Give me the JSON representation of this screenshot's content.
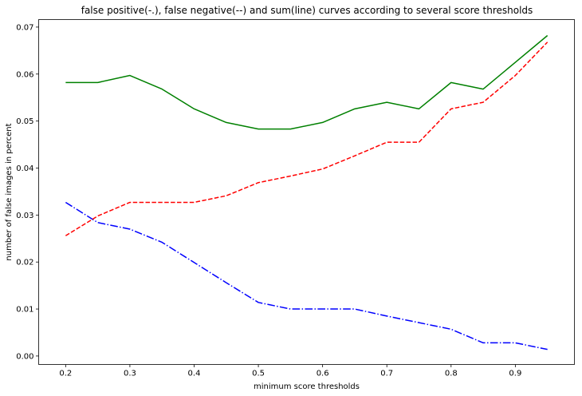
{
  "chart_data": {
    "type": "line",
    "title": "false positive(-.), false negative(--) and sum(line) curves according to several score thresholds",
    "xlabel": "minimum score thresholds",
    "ylabel": "number of false images in percent",
    "x": [
      0.2,
      0.25,
      0.3,
      0.35,
      0.4,
      0.45,
      0.5,
      0.55,
      0.6,
      0.65,
      0.7,
      0.75,
      0.8,
      0.85,
      0.9,
      0.95
    ],
    "xlim": [
      0.158,
      0.992
    ],
    "ylim": [
      -0.0018,
      0.0716
    ],
    "xticks": [
      0.2,
      0.3,
      0.4,
      0.5,
      0.6,
      0.7,
      0.8,
      0.9
    ],
    "xtick_labels": [
      "0.2",
      "0.3",
      "0.4",
      "0.5",
      "0.6",
      "0.7",
      "0.8",
      "0.9"
    ],
    "yticks": [
      0.0,
      0.01,
      0.02,
      0.03,
      0.04,
      0.05,
      0.06,
      0.07
    ],
    "ytick_labels": [
      "0.00",
      "0.01",
      "0.02",
      "0.03",
      "0.04",
      "0.05",
      "0.06",
      "0.07"
    ],
    "grid": false,
    "series": [
      {
        "values": [
          0.0327,
          0.0284,
          0.027,
          0.0242,
          0.0199,
          0.0156,
          0.0114,
          0.01,
          0.01,
          0.01,
          0.0085,
          0.0071,
          0.0057,
          0.0028,
          0.0028,
          0.0014
        ],
        "color": "#0000ff",
        "style": "dash-dot"
      },
      {
        "values": [
          0.0256,
          0.0298,
          0.0327,
          0.0327,
          0.0327,
          0.0341,
          0.0369,
          0.0383,
          0.0398,
          0.0426,
          0.0455,
          0.0455,
          0.0526,
          0.054,
          0.0597,
          0.0668
        ],
        "color": "#ff0000",
        "style": "dashed"
      },
      {
        "values": [
          0.0582,
          0.0582,
          0.0597,
          0.0568,
          0.0526,
          0.0497,
          0.0483,
          0.0483,
          0.0497,
          0.0526,
          0.054,
          0.0526,
          0.0582,
          0.0568,
          0.0625,
          0.0682
        ],
        "color": "#008000",
        "style": "solid"
      }
    ]
  }
}
